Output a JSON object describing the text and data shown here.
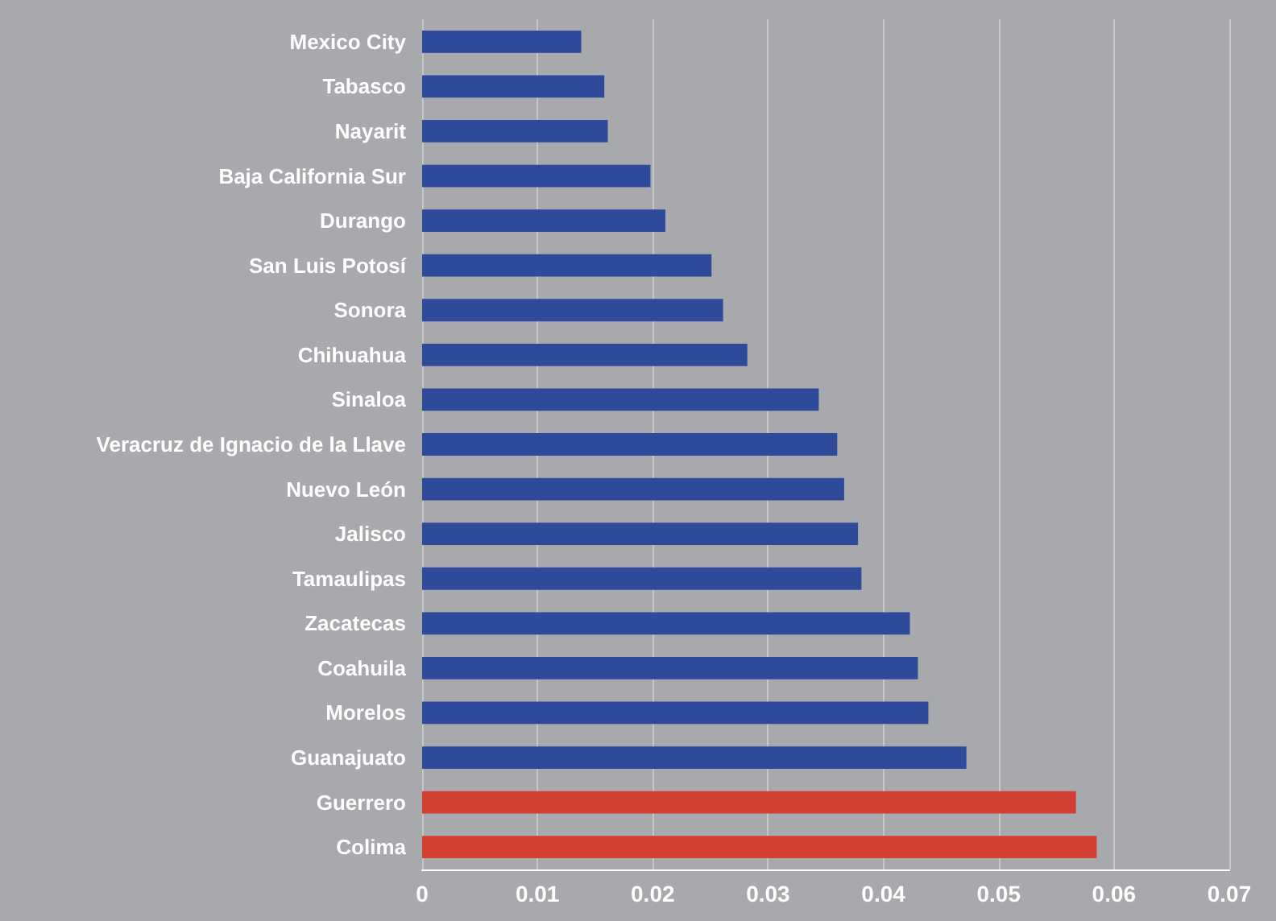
{
  "chart_data": {
    "type": "bar",
    "orientation": "horizontal",
    "categories": [
      "Mexico City",
      "Tabasco",
      "Nayarit",
      "Baja California Sur",
      "Durango",
      "San Luis Potosí",
      "Sonora",
      "Chihuahua",
      "Sinaloa",
      "Veracruz de Ignacio de la Llave",
      "Nuevo León",
      "Jalisco",
      "Tamaulipas",
      "Zacatecas",
      "Coahuila",
      "Morelos",
      "Guanajuato",
      "Guerrero",
      "Colima"
    ],
    "values": [
      0.0138,
      0.0158,
      0.0161,
      0.0198,
      0.0211,
      0.0251,
      0.0261,
      0.0282,
      0.0344,
      0.036,
      0.0366,
      0.0378,
      0.0381,
      0.0423,
      0.043,
      0.0439,
      0.0472,
      0.0567,
      0.0585
    ],
    "colors": [
      "#2e4a9a",
      "#2e4a9a",
      "#2e4a9a",
      "#2e4a9a",
      "#2e4a9a",
      "#2e4a9a",
      "#2e4a9a",
      "#2e4a9a",
      "#2e4a9a",
      "#2e4a9a",
      "#2e4a9a",
      "#2e4a9a",
      "#2e4a9a",
      "#2e4a9a",
      "#2e4a9a",
      "#2e4a9a",
      "#2e4a9a",
      "#d23f33",
      "#d23f33"
    ],
    "xlim": [
      0,
      0.07
    ],
    "xticks": [
      0,
      0.01,
      0.02,
      0.03,
      0.04,
      0.05,
      0.06,
      0.07
    ],
    "grid": "x"
  }
}
